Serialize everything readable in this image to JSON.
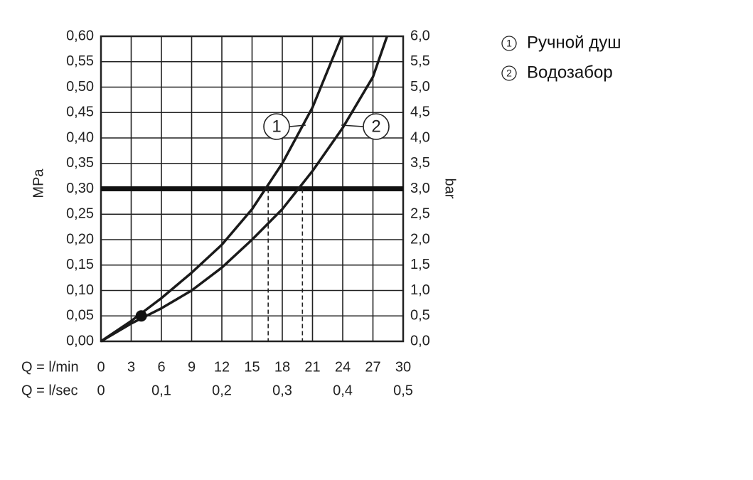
{
  "chart_data": {
    "type": "line",
    "ylabel": "MPa",
    "y2label": "bar",
    "xlabel": "Q = l/min",
    "x2label": "Q = l/sec",
    "xlim": [
      0,
      30
    ],
    "xticks": [
      0,
      3,
      6,
      9,
      12,
      15,
      18,
      21,
      24,
      27,
      30
    ],
    "x2lim": [
      0,
      0.5
    ],
    "x2ticks": [
      0,
      {
        "value": 0.1,
        "label": "0,1"
      },
      {
        "value": 0.2,
        "label": "0,2"
      },
      {
        "value": 0.3,
        "label": "0,3"
      },
      {
        "value": 0.4,
        "label": "0,4"
      },
      {
        "value": 0.5,
        "label": "0,5"
      }
    ],
    "ylim": [
      0,
      0.6
    ],
    "yticks": [
      {
        "value": 0,
        "label": "0,00"
      },
      {
        "value": 0.05,
        "label": "0,05"
      },
      {
        "value": 0.1,
        "label": "0,10"
      },
      {
        "value": 0.15,
        "label": "0,15"
      },
      {
        "value": 0.2,
        "label": "0,20"
      },
      {
        "value": 0.25,
        "label": "0,25"
      },
      {
        "value": 0.3,
        "label": "0,30"
      },
      {
        "value": 0.35,
        "label": "0,35"
      },
      {
        "value": 0.4,
        "label": "0,40"
      },
      {
        "value": 0.45,
        "label": "0,45"
      },
      {
        "value": 0.5,
        "label": "0,50"
      },
      {
        "value": 0.55,
        "label": "0,55"
      },
      {
        "value": 0.6,
        "label": "0,60"
      }
    ],
    "y2lim": [
      0,
      6
    ],
    "y2ticks": [
      {
        "value": 0,
        "label": "0,0"
      },
      {
        "value": 0.5,
        "label": "0,5"
      },
      {
        "value": 1,
        "label": "1,0"
      },
      {
        "value": 1.5,
        "label": "1,5"
      },
      {
        "value": 2,
        "label": "2,0"
      },
      {
        "value": 2.5,
        "label": "2,5"
      },
      {
        "value": 3,
        "label": "3,0"
      },
      {
        "value": 3.5,
        "label": "3,5"
      },
      {
        "value": 4,
        "label": "4,0"
      },
      {
        "value": 4.5,
        "label": "4,5"
      },
      {
        "value": 5,
        "label": "5,0"
      },
      {
        "value": 5.5,
        "label": "5,5"
      },
      {
        "value": 6,
        "label": "6,0"
      }
    ],
    "grid": true,
    "reference_y": 0.3,
    "reference_x": [
      16.6,
      20
    ],
    "marker": {
      "x": 4,
      "y": 0.05
    },
    "series": [
      {
        "name": "Ручной душ",
        "label": "1",
        "color": "#1a1a1a",
        "x": [
          0,
          3,
          6,
          9,
          12,
          15,
          18,
          21,
          23.9
        ],
        "values": [
          0,
          0.04,
          0.085,
          0.135,
          0.19,
          0.26,
          0.35,
          0.46,
          0.6
        ]
      },
      {
        "name": "Водозабор",
        "label": "2",
        "color": "#1a1a1a",
        "x": [
          0,
          3,
          6,
          9,
          12,
          15,
          18,
          21,
          24,
          27,
          28.4
        ],
        "values": [
          0,
          0.035,
          0.065,
          0.1,
          0.145,
          0.2,
          0.26,
          0.335,
          0.42,
          0.52,
          0.6
        ]
      }
    ]
  }
}
